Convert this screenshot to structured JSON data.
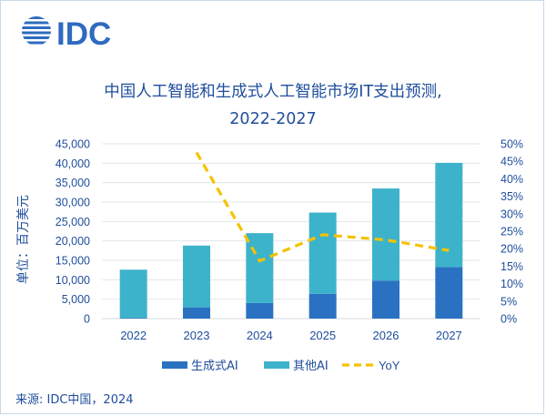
{
  "header": {
    "logo_text": "IDC",
    "title_line1": "中国人工智能和生成式人工智能市场IT支出预测,",
    "title_line2": "2022-2027"
  },
  "source": "来源: IDC中国，2024",
  "colors": {
    "generative_ai": "#2a72c1",
    "other_ai": "#3db3cb",
    "yoy": "#f5c200",
    "text": "#1f4e9c",
    "grid": "#e3e6ea",
    "logo": "#2d6bbf"
  },
  "chart_data": {
    "type": "bar",
    "stacked": true,
    "categories": [
      "2022",
      "2023",
      "2024",
      "2025",
      "2026",
      "2027"
    ],
    "ylabel": "单位：百万美元",
    "ylim": [
      0,
      45000
    ],
    "yticks": [
      "0",
      "5,000",
      "10,000",
      "15,000",
      "20,000",
      "25,000",
      "30,000",
      "35,000",
      "40,000",
      "45,000"
    ],
    "y2lim": [
      0,
      50
    ],
    "y2ticks": [
      "0%",
      "5%",
      "10%",
      "15%",
      "20%",
      "25%",
      "30%",
      "35%",
      "40%",
      "45%",
      "50%"
    ],
    "grid": true,
    "legend_position": "bottom",
    "series": [
      {
        "name": "生成式AI",
        "type": "bar",
        "values": [
          200,
          2900,
          4000,
          6400,
          9800,
          13300
        ]
      },
      {
        "name": "其他AI",
        "type": "bar",
        "values": [
          12400,
          15900,
          18000,
          20900,
          23700,
          26800
        ]
      },
      {
        "name": "YoY",
        "type": "line",
        "axis": "right",
        "style": "dashed",
        "values": [
          null,
          47.5,
          16.5,
          24.0,
          22.5,
          19.5
        ]
      }
    ]
  }
}
